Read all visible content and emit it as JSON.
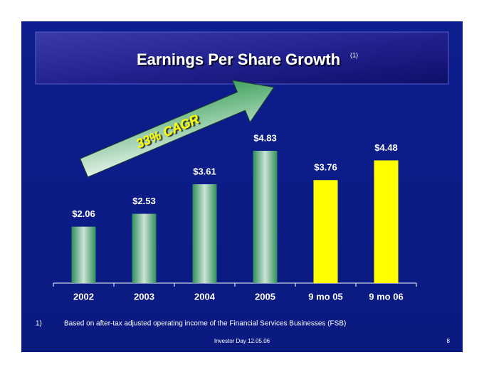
{
  "chart_data": {
    "type": "bar",
    "title": "Earnings Per Share Growth",
    "title_note": "(1)",
    "categories": [
      "2002",
      "2003",
      "2004",
      "2005",
      "9 mo 05",
      "9 mo 06"
    ],
    "values": [
      2.06,
      2.53,
      3.61,
      4.83,
      3.76,
      4.48
    ],
    "value_labels": [
      "$2.06",
      "$2.53",
      "$3.61",
      "$4.83",
      "$3.76",
      "$4.48"
    ],
    "colors": [
      "#2f8f5a",
      "#2f8f5a",
      "#2f8f5a",
      "#2f8f5a",
      "#ffff00",
      "#ffff00"
    ],
    "annotation": "33% CAGR"
  },
  "footnote": {
    "marker": "1)",
    "text": "Based on after-tax adjusted operating income of the Financial Services Businesses (FSB)"
  },
  "footer": "Investor Day 12.05.06",
  "page_number": "8"
}
